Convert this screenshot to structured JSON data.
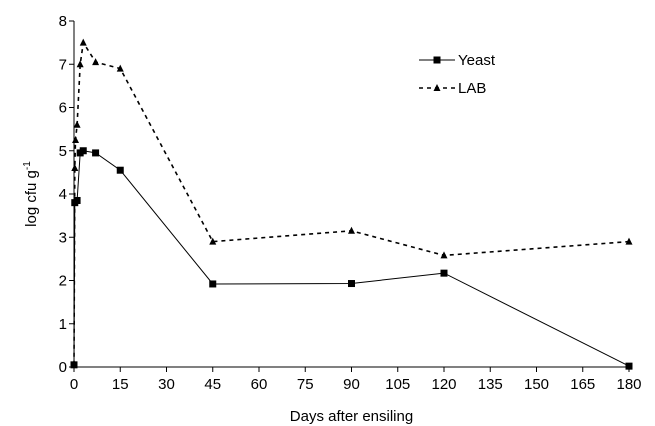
{
  "chart_data": {
    "type": "line",
    "title": "",
    "xlabel": "Days after ensiling",
    "ylabel": "log cfu g",
    "ylabel_superscript": "-1",
    "xlim": [
      0,
      180
    ],
    "ylim": [
      0,
      8
    ],
    "xticks": [
      0,
      15,
      30,
      45,
      60,
      75,
      90,
      105,
      120,
      135,
      150,
      165,
      180
    ],
    "yticks": [
      0,
      1,
      2,
      3,
      4,
      5,
      6,
      7,
      8
    ],
    "grid": false,
    "legend_position": "top-right",
    "series": [
      {
        "name": "Yeast",
        "line_style": "solid",
        "marker": "square",
        "x": [
          0,
          0.25,
          1,
          2,
          3,
          7,
          15,
          45,
          90,
          120,
          180
        ],
        "y": [
          0.05,
          3.8,
          3.85,
          4.95,
          5.0,
          4.95,
          4.55,
          1.92,
          1.93,
          2.17,
          0.02
        ]
      },
      {
        "name": "LAB",
        "line_style": "dashed",
        "marker": "triangle",
        "x": [
          0,
          0.25,
          0.5,
          1,
          2,
          3,
          7,
          15,
          45,
          90,
          120,
          180
        ],
        "y": [
          0.05,
          4.6,
          5.25,
          5.6,
          7.0,
          7.5,
          7.05,
          6.9,
          2.9,
          3.15,
          2.58,
          2.9
        ]
      }
    ]
  }
}
